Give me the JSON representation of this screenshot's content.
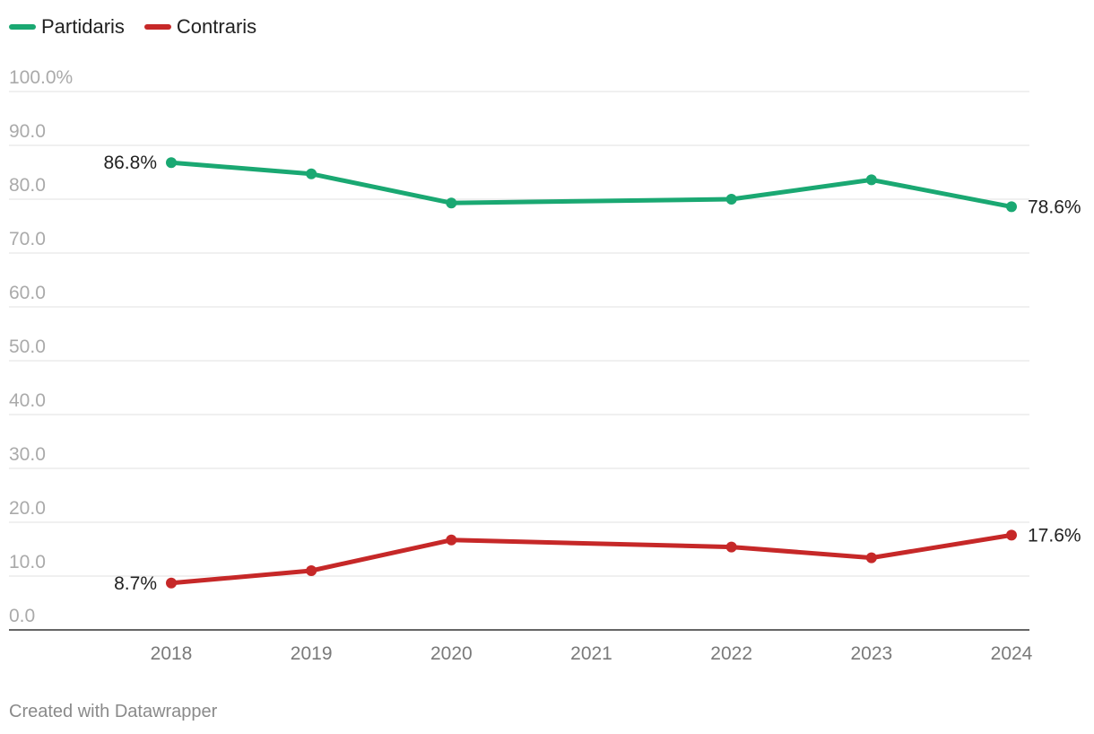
{
  "chart_data": {
    "type": "line",
    "x": [
      "2018",
      "2019",
      "2020",
      "2021",
      "2022",
      "2023",
      "2024"
    ],
    "series": [
      {
        "name": "Partidaris",
        "color": "#1aa872",
        "points": [
          {
            "x": "2018",
            "y": 86.8
          },
          {
            "x": "2019",
            "y": 84.7
          },
          {
            "x": "2020",
            "y": 79.3
          },
          {
            "x": "2022",
            "y": 80.0
          },
          {
            "x": "2023",
            "y": 83.6
          },
          {
            "x": "2024",
            "y": 78.6
          }
        ]
      },
      {
        "name": "Contraris",
        "color": "#c62828",
        "points": [
          {
            "x": "2018",
            "y": 8.7
          },
          {
            "x": "2019",
            "y": 11.0
          },
          {
            "x": "2020",
            "y": 16.7
          },
          {
            "x": "2022",
            "y": 15.4
          },
          {
            "x": "2023",
            "y": 13.4
          },
          {
            "x": "2024",
            "y": 17.6
          }
        ]
      }
    ],
    "y_ticks": [
      {
        "value": 0,
        "label": "0.0"
      },
      {
        "value": 10,
        "label": "10.0"
      },
      {
        "value": 20,
        "label": "20.0"
      },
      {
        "value": 30,
        "label": "30.0"
      },
      {
        "value": 40,
        "label": "40.0"
      },
      {
        "value": 50,
        "label": "50.0"
      },
      {
        "value": 60,
        "label": "60.0"
      },
      {
        "value": 70,
        "label": "70.0"
      },
      {
        "value": 80,
        "label": "80.0"
      },
      {
        "value": 90,
        "label": "90.0"
      },
      {
        "value": 100,
        "label": "100.0%"
      }
    ],
    "ylim": [
      0,
      100
    ],
    "data_labels": [
      {
        "series": "Partidaris",
        "x": "2018",
        "text": "86.8%",
        "side": "left"
      },
      {
        "series": "Partidaris",
        "x": "2024",
        "text": "78.6%",
        "side": "right"
      },
      {
        "series": "Contraris",
        "x": "2018",
        "text": "8.7%",
        "side": "left"
      },
      {
        "series": "Contraris",
        "x": "2024",
        "text": "17.6%",
        "side": "right"
      }
    ],
    "grid": true,
    "legend_position": "top-left",
    "title": "",
    "xlabel": "",
    "ylabel": ""
  },
  "legend": {
    "items": [
      {
        "label": "Partidaris",
        "color": "#1aa872"
      },
      {
        "label": "Contraris",
        "color": "#c62828"
      }
    ]
  },
  "footer": {
    "credit": "Created with Datawrapper"
  }
}
